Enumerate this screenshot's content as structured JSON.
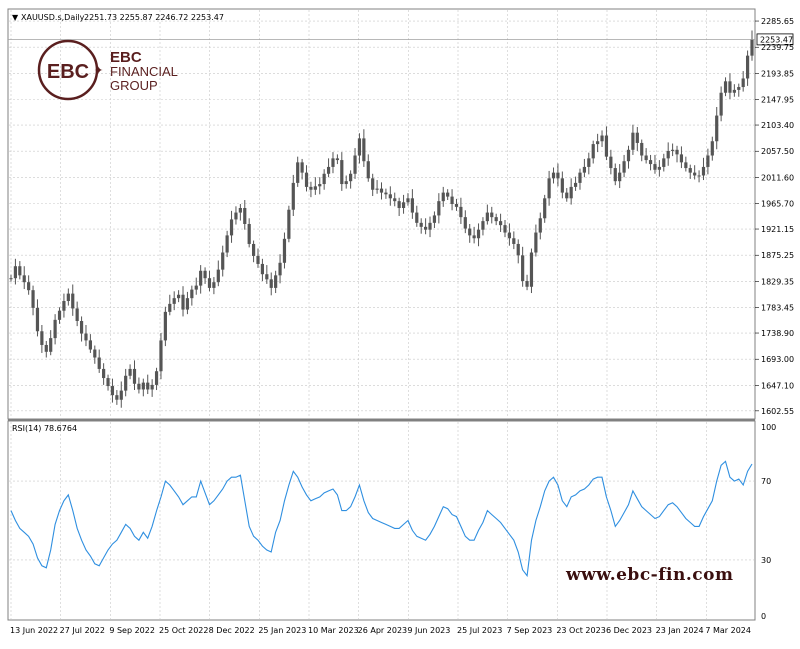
{
  "chart_data": [
    {
      "type": "candlestick",
      "symbol_header": "XAUUSD.s,Daily",
      "ohlc_header": "2251.73 2255.87 2246.72 2253.47",
      "last_price_label": "2253.47",
      "last_price": 2253.47,
      "ylim": [
        1590,
        2305
      ],
      "y_ticks": [
        "2285.65",
        "2239.75",
        "2193.85",
        "2147.95",
        "2103.40",
        "2057.50",
        "2011.60",
        "1965.70",
        "1921.15",
        "1875.25",
        "1829.35",
        "1783.45",
        "1738.90",
        "1693.00",
        "1647.10",
        "1602.55"
      ],
      "grid": true,
      "series": [
        {
          "values": [
            1835,
            1856,
            1840,
            1828,
            1814,
            1783,
            1742,
            1718,
            1706,
            1730,
            1762,
            1778,
            1795,
            1808,
            1782,
            1760,
            1738,
            1726,
            1710,
            1696,
            1676,
            1660,
            1646,
            1630,
            1622,
            1638,
            1664,
            1676,
            1650,
            1640,
            1652,
            1640,
            1648,
            1672,
            1726,
            1776,
            1790,
            1800,
            1806,
            1780,
            1800,
            1815,
            1822,
            1848,
            1835,
            1818,
            1828,
            1850,
            1880,
            1910,
            1938,
            1950,
            1958,
            1930,
            1895,
            1874,
            1860,
            1842,
            1833,
            1818,
            1840,
            1862,
            1904,
            1955,
            2002,
            2038,
            2020,
            1995,
            1990,
            1996,
            2000,
            2018,
            2030,
            2045,
            2042,
            2000,
            2005,
            2018,
            2050,
            2080,
            2040,
            2010,
            1990,
            1992,
            1985,
            1982,
            1975,
            1970,
            1958,
            1968,
            1975,
            1950,
            1932,
            1925,
            1920,
            1932,
            1945,
            1970,
            1985,
            1978,
            1965,
            1960,
            1942,
            1922,
            1910,
            1905,
            1920,
            1935,
            1950,
            1942,
            1935,
            1928,
            1915,
            1905,
            1895,
            1875,
            1830,
            1820,
            1880,
            1915,
            1940,
            1975,
            2010,
            2020,
            2010,
            1985,
            1975,
            1995,
            2002,
            2020,
            2030,
            2045,
            2070,
            2075,
            2085,
            2048,
            2028,
            2005,
            2020,
            2040,
            2060,
            2090,
            2072,
            2050,
            2042,
            2035,
            2025,
            2030,
            2045,
            2058,
            2060,
            2052,
            2038,
            2028,
            2020,
            2015,
            2015,
            2030,
            2050,
            2075,
            2120,
            2160,
            2180,
            2160,
            2165,
            2170,
            2185,
            2225,
            2253
          ]
        }
      ],
      "annotations": [
        "www.ebc-fin.com"
      ]
    },
    {
      "type": "line",
      "title": "RSI(14) 78.6764",
      "ylim": [
        0,
        100
      ],
      "y_ticks": [
        "100",
        "70",
        "30",
        "0"
      ],
      "levels": [
        70,
        30
      ],
      "x_ticks": [
        "13 Jun 2022",
        "27 Jul 2022",
        "9 Sep 2022",
        "25 Oct 2022",
        "8 Dec 2022",
        "25 Jan 2023",
        "10 Mar 2023",
        "26 Apr 2023",
        "9 Jun 2023",
        "25 Jul 2023",
        "7 Sep 2023",
        "23 Oct 2023",
        "6 Dec 2023",
        "23 Jan 2024",
        "7 Mar 2024"
      ],
      "grid": true,
      "series": [
        {
          "color": "#2f8fe0",
          "values": [
            55,
            50,
            46,
            44,
            42,
            38,
            31,
            27,
            26,
            35,
            48,
            55,
            60,
            63,
            55,
            46,
            40,
            35,
            32,
            28,
            27,
            31,
            35,
            38,
            40,
            44,
            48,
            46,
            42,
            40,
            44,
            41,
            47,
            55,
            62,
            70,
            68,
            65,
            62,
            58,
            60,
            62,
            62,
            70,
            64,
            58,
            60,
            63,
            66,
            70,
            72,
            72,
            73,
            60,
            47,
            42,
            40,
            37,
            35,
            34,
            44,
            50,
            60,
            68,
            75,
            72,
            67,
            63,
            60,
            61,
            62,
            64,
            65,
            66,
            63,
            55,
            55,
            57,
            62,
            68,
            60,
            54,
            51,
            50,
            49,
            48,
            47,
            46,
            46,
            48,
            50,
            45,
            42,
            41,
            40,
            43,
            47,
            52,
            57,
            56,
            53,
            52,
            47,
            42,
            40,
            40,
            45,
            49,
            55,
            53,
            51,
            49,
            46,
            43,
            40,
            34,
            25,
            22,
            40,
            50,
            57,
            65,
            70,
            72,
            68,
            60,
            57,
            62,
            63,
            65,
            66,
            68,
            71,
            72,
            72,
            62,
            55,
            47,
            50,
            54,
            58,
            65,
            61,
            57,
            55,
            53,
            51,
            52,
            55,
            58,
            59,
            57,
            54,
            51,
            49,
            47,
            47,
            52,
            56,
            60,
            70,
            78,
            80,
            72,
            70,
            71,
            68,
            75,
            78.68
          ]
        }
      ],
      "annotations": []
    }
  ],
  "logo": {
    "line1": "EBC",
    "line2": "FINANCIAL",
    "line3": "GROUP",
    "monogram": "EBC"
  },
  "colors": {
    "candle": "#555555",
    "rsi": "#2f8fe0",
    "grid": "#c8c8c8",
    "border": "#808080",
    "brand": "#5a1f1f"
  }
}
